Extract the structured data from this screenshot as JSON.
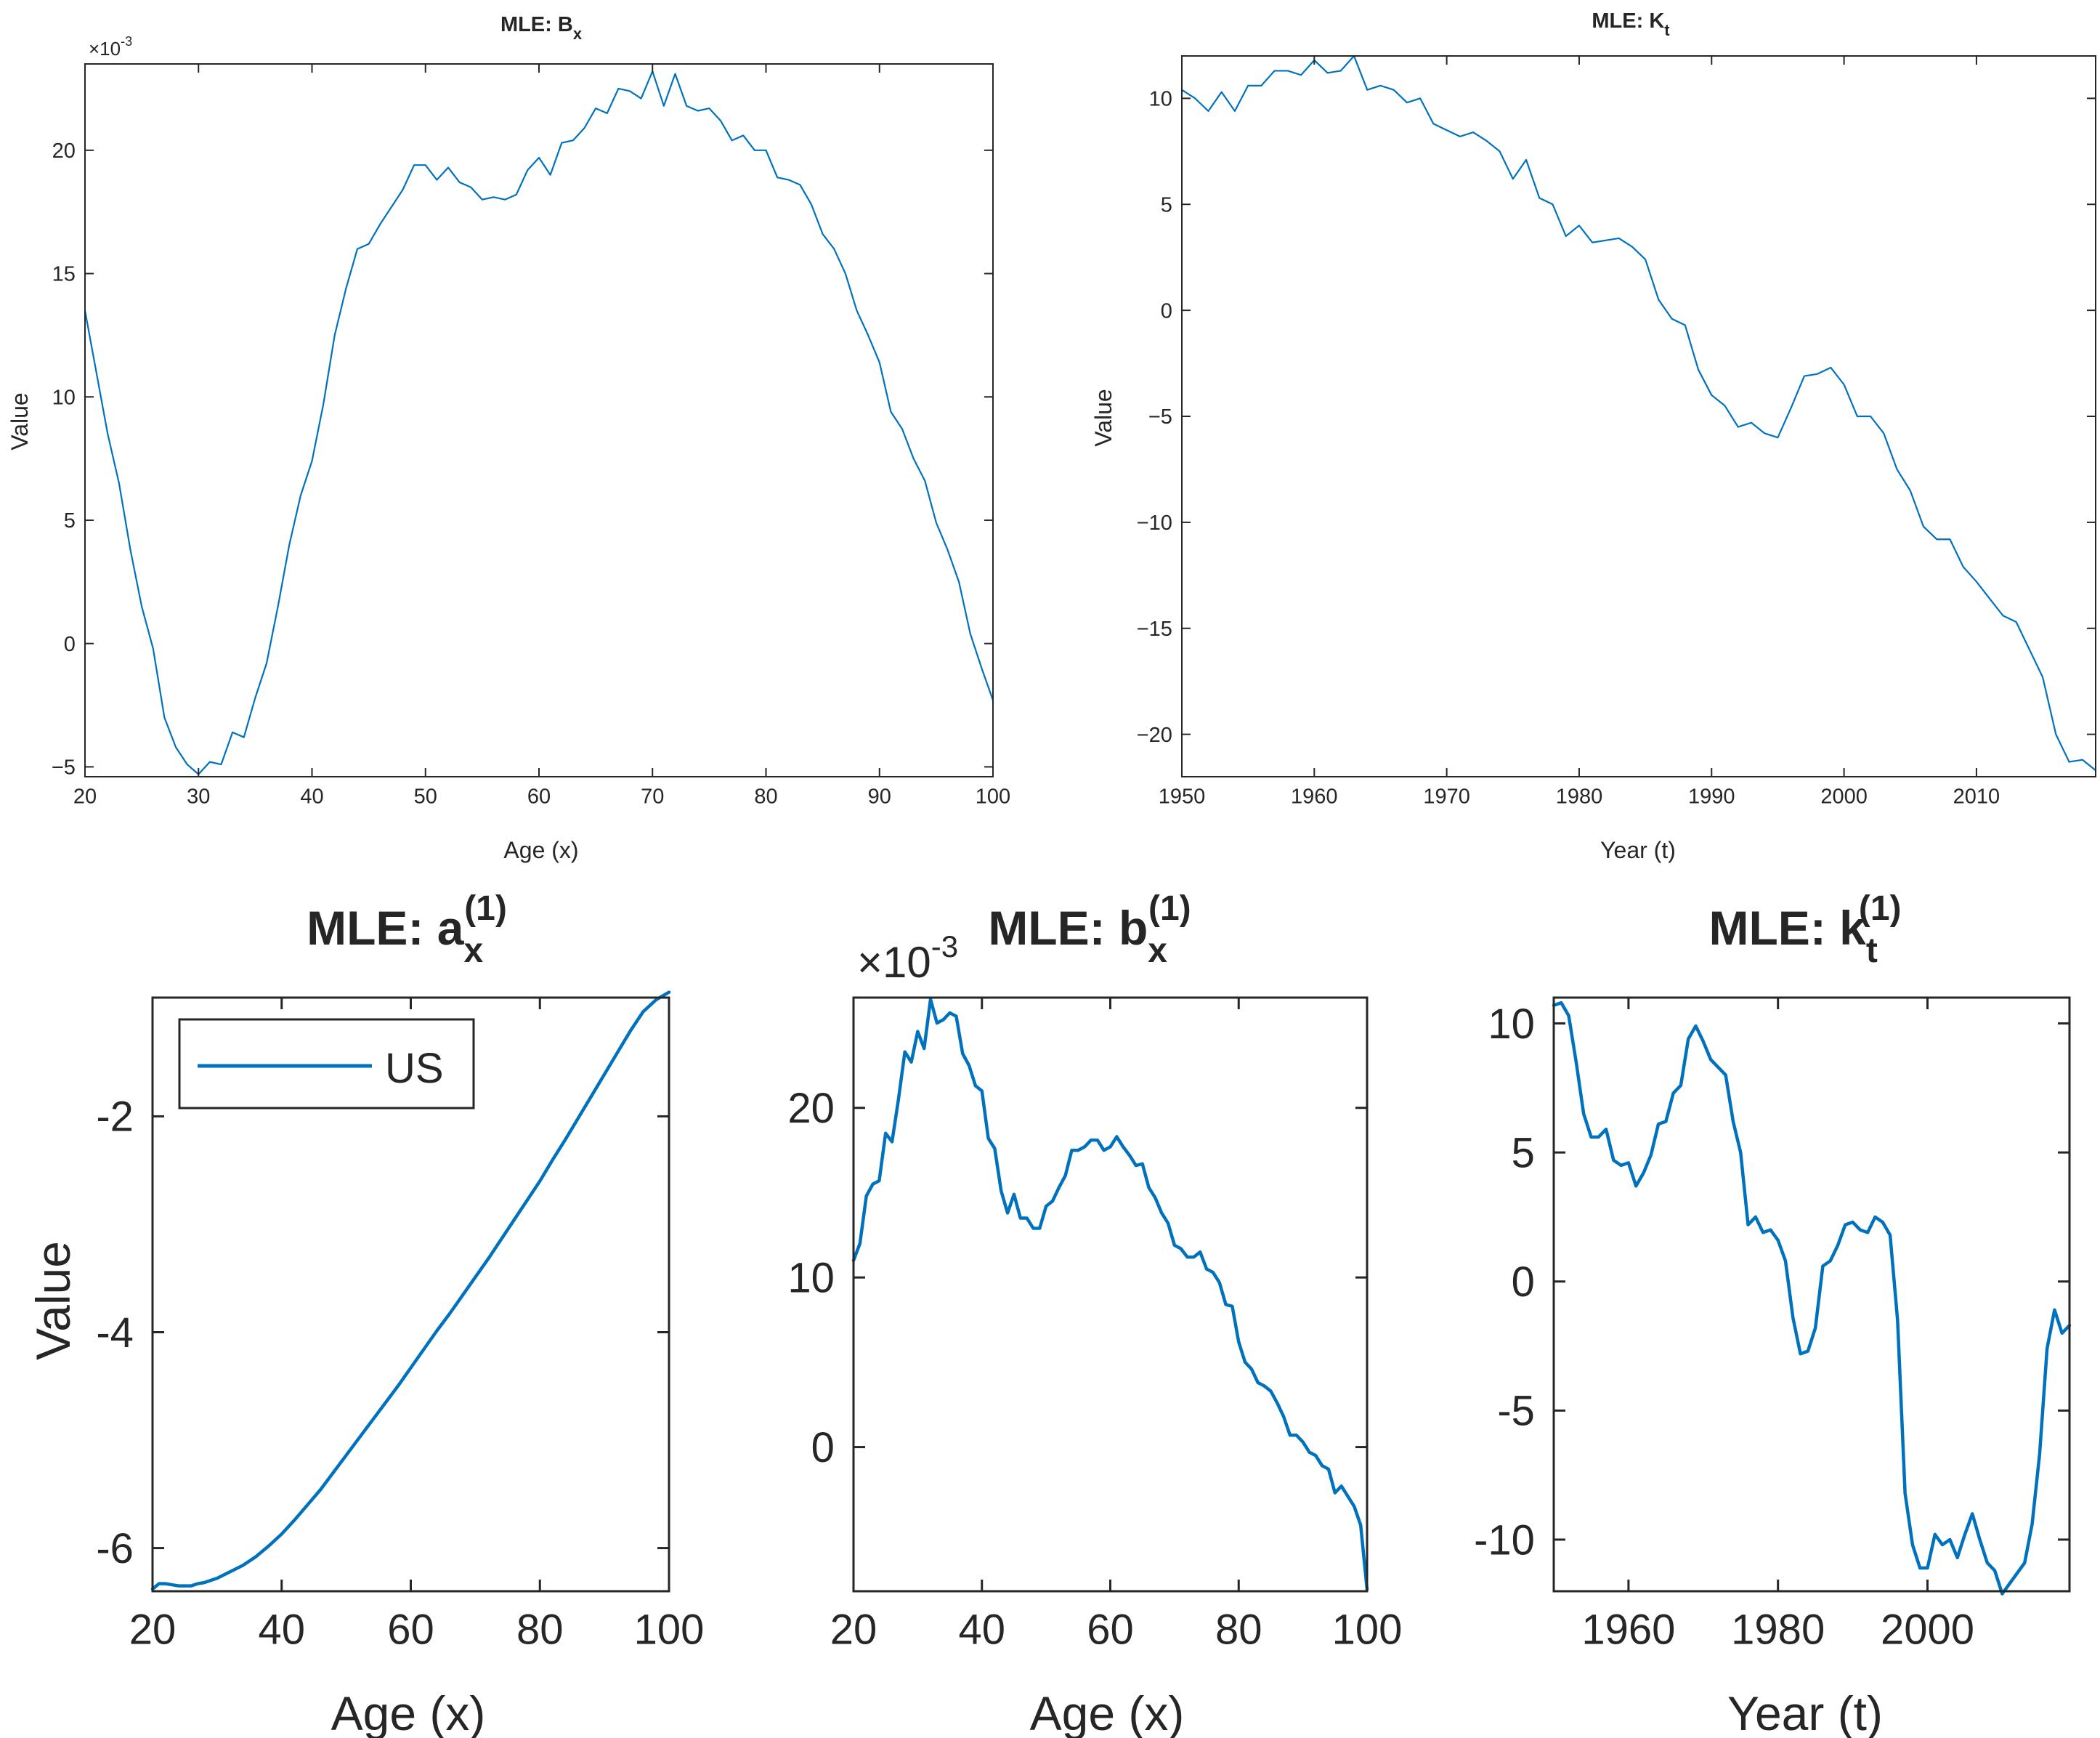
{
  "colors": {
    "series": "#0072BD",
    "axis": "#262626",
    "background": "#ffffff"
  },
  "chart_data": [
    {
      "type": "line",
      "title": "MLE: B",
      "title_sub": "x",
      "xlabel": "Age (x)",
      "ylabel": "Value",
      "exponent_label": "×10",
      "exponent": "-3",
      "xlim": [
        20,
        100
      ],
      "ylim": [
        -5.4,
        23.5
      ],
      "xticks": [
        20,
        30,
        40,
        50,
        60,
        70,
        80,
        90,
        100
      ],
      "yticks": [
        -5,
        0,
        5,
        10,
        15,
        20
      ],
      "x": [
        20,
        21,
        22,
        23,
        24,
        25,
        26,
        27,
        28,
        29,
        30,
        31,
        32,
        33,
        34,
        35,
        36,
        37,
        38,
        39,
        40,
        41,
        42,
        43,
        44,
        45,
        46,
        47,
        48,
        49,
        50,
        51,
        52,
        53,
        54,
        55,
        56,
        57,
        58,
        59,
        60,
        61,
        62,
        63,
        64,
        65,
        66,
        67,
        68,
        69,
        70,
        71,
        72,
        73,
        74,
        75,
        76,
        77,
        78,
        79,
        80,
        81,
        82,
        83,
        84,
        85,
        86,
        87,
        88,
        89,
        90,
        91,
        92,
        93,
        94,
        95,
        96,
        97,
        98,
        99,
        100
      ],
      "y": [
        13.5,
        11,
        8.5,
        6.5,
        3.8,
        1.5,
        -0.2,
        -3,
        -4.2,
        -4.9,
        -5.3,
        -4.8,
        -4.9,
        -3.6,
        -3.8,
        -2.2,
        -0.8,
        1.5,
        4,
        6,
        7.4,
        9.7,
        12.5,
        14.4,
        16,
        16.2,
        17,
        17.7,
        18.4,
        19.4,
        19.4,
        18.8,
        19.3,
        18.7,
        18.5,
        18,
        18.1,
        18,
        18.2,
        19.2,
        19.7,
        19,
        20.3,
        20.4,
        20.9,
        21.7,
        21.5,
        22.5,
        22.4,
        22.1,
        23.2,
        21.8,
        23.1,
        21.8,
        21.6,
        21.7,
        21.2,
        20.4,
        20.6,
        20,
        20,
        18.9,
        18.8,
        18.6,
        17.8,
        16.6,
        16,
        15,
        13.5,
        12.5,
        11.4,
        9.4,
        8.7,
        7.5,
        6.6,
        4.9,
        3.8,
        2.5,
        0.4,
        -1,
        -2.3
      ]
    },
    {
      "type": "line",
      "title": "MLE: K",
      "title_sub": "t",
      "xlabel": "Year (t)",
      "ylabel": "Value",
      "xlim": [
        1950,
        2019
      ],
      "ylim": [
        -22,
        12
      ],
      "xticks": [
        1950,
        1960,
        1970,
        1980,
        1990,
        2000,
        2010
      ],
      "yticks": [
        -20,
        -15,
        -10,
        -5,
        0,
        5,
        10
      ],
      "x": [
        1950,
        1951,
        1952,
        1953,
        1954,
        1955,
        1956,
        1957,
        1958,
        1959,
        1960,
        1961,
        1962,
        1963,
        1964,
        1965,
        1966,
        1967,
        1968,
        1969,
        1970,
        1971,
        1972,
        1973,
        1974,
        1975,
        1976,
        1977,
        1978,
        1979,
        1980,
        1981,
        1982,
        1983,
        1984,
        1985,
        1986,
        1987,
        1988,
        1989,
        1990,
        1991,
        1992,
        1993,
        1994,
        1995,
        1996,
        1997,
        1998,
        1999,
        2000,
        2001,
        2002,
        2003,
        2004,
        2005,
        2006,
        2007,
        2008,
        2009,
        2010,
        2011,
        2012,
        2013,
        2014,
        2015,
        2016,
        2017,
        2018,
        2019
      ],
      "y": [
        10.4,
        10,
        9.4,
        10.3,
        9.4,
        10.6,
        10.6,
        11.3,
        11.3,
        11.1,
        11.8,
        11.2,
        11.3,
        12,
        10.4,
        10.6,
        10.4,
        9.8,
        10,
        8.8,
        8.5,
        8.2,
        8.4,
        8,
        7.5,
        6.2,
        7.1,
        5.3,
        5,
        3.5,
        4,
        3.2,
        3.3,
        3.4,
        3,
        2.4,
        0.5,
        -0.4,
        -0.7,
        -2.8,
        -4,
        -4.5,
        -5.5,
        -5.3,
        -5.8,
        -6,
        -4.6,
        -3.1,
        -3,
        -2.7,
        -3.5,
        -5,
        -5,
        -5.8,
        -7.5,
        -8.5,
        -10.2,
        -10.8,
        -10.8,
        -12.1,
        -12.8,
        -13.6,
        -14.4,
        -14.7,
        -16,
        -17.3,
        -20,
        -21.3,
        -21.2,
        -21.7
      ]
    },
    {
      "type": "line",
      "title": "MLE: a",
      "title_sub": "x",
      "title_sup": "(1)",
      "xlabel": "Age (x)",
      "ylabel": "Value",
      "xlim": [
        20,
        100
      ],
      "ylim": [
        -6.4,
        -0.9
      ],
      "xticks": [
        20,
        40,
        60,
        80,
        100
      ],
      "yticks": [
        -6,
        -4,
        -2
      ],
      "legend": {
        "label": "US",
        "position": "top-left"
      },
      "x": [
        20,
        21,
        22,
        23,
        24,
        25,
        26,
        27,
        28,
        29,
        30,
        32,
        34,
        36,
        38,
        40,
        42,
        44,
        46,
        48,
        50,
        52,
        54,
        56,
        58,
        60,
        62,
        64,
        66,
        68,
        70,
        72,
        74,
        76,
        78,
        80,
        82,
        84,
        86,
        88,
        90,
        92,
        94,
        96,
        98,
        100
      ],
      "y": [
        -6.38,
        -6.33,
        -6.33,
        -6.34,
        -6.35,
        -6.35,
        -6.35,
        -6.33,
        -6.32,
        -6.3,
        -6.28,
        -6.22,
        -6.16,
        -6.08,
        -5.98,
        -5.87,
        -5.74,
        -5.6,
        -5.46,
        -5.3,
        -5.14,
        -4.98,
        -4.82,
        -4.66,
        -4.5,
        -4.33,
        -4.16,
        -3.99,
        -3.83,
        -3.66,
        -3.49,
        -3.32,
        -3.14,
        -2.96,
        -2.78,
        -2.6,
        -2.4,
        -2.21,
        -2.01,
        -1.81,
        -1.61,
        -1.41,
        -1.21,
        -1.03,
        -0.92,
        -0.85
      ]
    },
    {
      "type": "line",
      "title": "MLE: b",
      "title_sub": "x",
      "title_sup": "(1)",
      "xlabel": "Age (x)",
      "ylabel": "",
      "exponent_label": "×10",
      "exponent": "-3",
      "xlim": [
        20,
        100
      ],
      "ylim": [
        -8.5,
        26.5
      ],
      "xticks": [
        20,
        40,
        60,
        80,
        100
      ],
      "yticks": [
        0,
        10,
        20
      ],
      "x": [
        20,
        21,
        22,
        23,
        24,
        25,
        26,
        27,
        28,
        29,
        30,
        31,
        32,
        33,
        34,
        35,
        36,
        37,
        38,
        39,
        40,
        41,
        42,
        43,
        44,
        45,
        46,
        47,
        48,
        49,
        50,
        51,
        52,
        53,
        54,
        55,
        56,
        57,
        58,
        59,
        60,
        61,
        62,
        63,
        64,
        65,
        66,
        67,
        68,
        69,
        70,
        71,
        72,
        73,
        74,
        75,
        76,
        77,
        78,
        79,
        80,
        81,
        82,
        83,
        84,
        85,
        86,
        87,
        88,
        89,
        90,
        91,
        92,
        93,
        94,
        95,
        96,
        97,
        98,
        99,
        100
      ],
      "y": [
        11,
        12,
        14.8,
        15.5,
        15.7,
        18.5,
        18,
        20.5,
        23.3,
        22.7,
        24.5,
        23.5,
        26.4,
        25,
        25.2,
        25.6,
        25.4,
        23.2,
        22.5,
        21.3,
        21,
        18.2,
        17.6,
        15.1,
        13.8,
        14.9,
        13.5,
        13.5,
        12.9,
        12.9,
        14.2,
        14.5,
        15.3,
        16,
        17.5,
        17.5,
        17.7,
        18.1,
        18.1,
        17.5,
        17.7,
        18.3,
        17.7,
        17.2,
        16.6,
        16.7,
        15.3,
        14.7,
        13.8,
        13.2,
        11.9,
        11.7,
        11.2,
        11.2,
        11.5,
        10.5,
        10.3,
        9.7,
        8.4,
        8.3,
        6.2,
        5,
        4.6,
        3.8,
        3.6,
        3.3,
        2.6,
        1.8,
        0.7,
        0.7,
        0.3,
        -0.3,
        -0.5,
        -1.1,
        -1.3,
        -2.7,
        -2.3,
        -2.9,
        -3.5,
        -4.6,
        -8.4
      ]
    },
    {
      "type": "line",
      "title": "MLE: k",
      "title_sub": "t",
      "title_sup": "(1)",
      "xlabel": "Year (t)",
      "ylabel": "",
      "xlim": [
        1950,
        2019
      ],
      "ylim": [
        -12,
        11
      ],
      "xticks": [
        1960,
        1980,
        2000
      ],
      "yticks": [
        -10,
        -5,
        0,
        5,
        10
      ],
      "x": [
        1950,
        1951,
        1952,
        1953,
        1954,
        1955,
        1956,
        1957,
        1958,
        1959,
        1960,
        1961,
        1962,
        1963,
        1964,
        1965,
        1966,
        1967,
        1968,
        1969,
        1970,
        1971,
        1972,
        1973,
        1974,
        1975,
        1976,
        1977,
        1978,
        1979,
        1980,
        1981,
        1982,
        1983,
        1984,
        1985,
        1986,
        1987,
        1988,
        1989,
        1990,
        1991,
        1992,
        1993,
        1994,
        1995,
        1996,
        1997,
        1998,
        1999,
        2000,
        2001,
        2002,
        2003,
        2004,
        2005,
        2006,
        2007,
        2008,
        2009,
        2010,
        2011,
        2012,
        2013,
        2014,
        2015,
        2016,
        2017,
        2018,
        2019
      ],
      "y": [
        10.7,
        10.8,
        10.3,
        8.5,
        6.5,
        5.6,
        5.6,
        5.9,
        4.7,
        4.5,
        4.6,
        3.7,
        4.2,
        4.9,
        6.1,
        6.2,
        7.3,
        7.6,
        9.4,
        9.9,
        9.3,
        8.6,
        8.3,
        8,
        6.2,
        5,
        2.2,
        2.5,
        1.9,
        2,
        1.6,
        0.8,
        -1.4,
        -2.8,
        -2.7,
        -1.8,
        0.6,
        0.8,
        1.4,
        2.2,
        2.3,
        2,
        1.9,
        2.5,
        2.3,
        1.8,
        -1.5,
        -8.2,
        -10.2,
        -11.1,
        -11.1,
        -9.8,
        -10.2,
        -10,
        -10.7,
        -9.8,
        -9,
        -10,
        -10.9,
        -11.2,
        -12.1,
        -11.7,
        -11.3,
        -10.9,
        -9.4,
        -6.7,
        -2.6,
        -1.1,
        -2,
        -1.7
      ]
    }
  ]
}
